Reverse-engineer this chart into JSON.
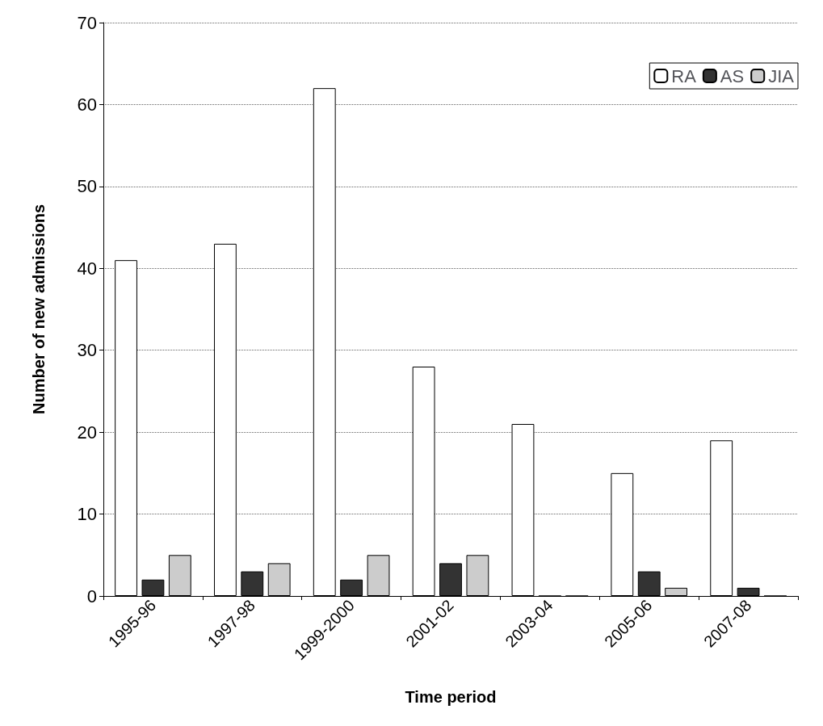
{
  "chart_data": {
    "type": "bar",
    "xlabel": "Time period",
    "ylabel": "Number of new admissions",
    "categories": [
      "1995-96",
      "1997-98",
      "1999-2000",
      "2001-02",
      "2003-04",
      "2005-06",
      "2007-08"
    ],
    "series": [
      {
        "name": "RA",
        "color": "#ffffff",
        "values": [
          41,
          43,
          62,
          28,
          21,
          15,
          19
        ]
      },
      {
        "name": "AS",
        "color": "#333333",
        "values": [
          2,
          3,
          2,
          4,
          0,
          3,
          1
        ]
      },
      {
        "name": "JIA",
        "color": "#cccccc",
        "values": [
          5,
          4,
          5,
          5,
          0,
          1,
          0
        ]
      }
    ],
    "ylim": [
      0,
      70
    ],
    "yticks": [
      0,
      10,
      20,
      30,
      40,
      50,
      60,
      70
    ],
    "grid": "y",
    "legend": "top right"
  }
}
